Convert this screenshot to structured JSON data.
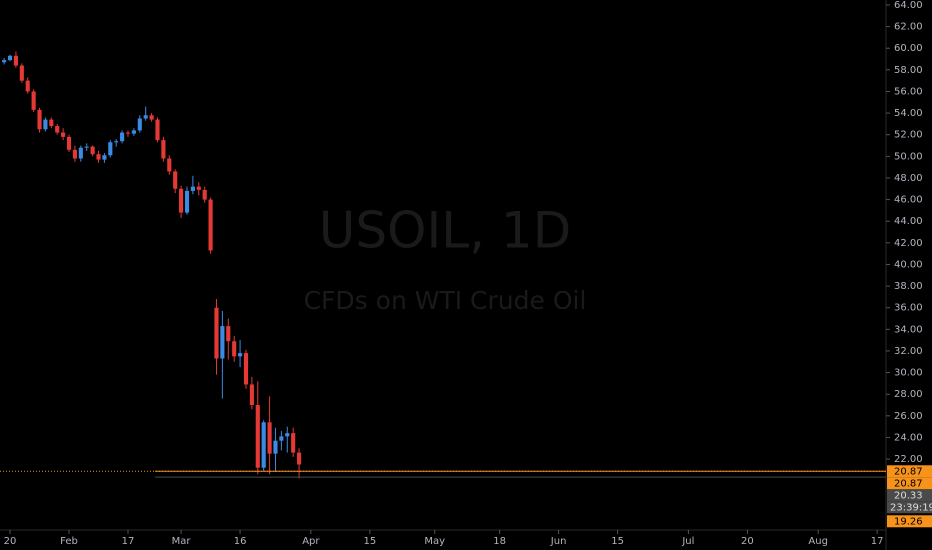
{
  "chart_data": {
    "type": "candlestick",
    "watermark": {
      "symbol": "USOIL, 1D",
      "description": "CFDs on WTI Crude Oil"
    },
    "up_color": "#3b8be6",
    "down_color": "#e53935",
    "open": [
      58.7,
      58.9,
      59.3,
      58.4,
      57.0,
      56.0,
      54.3,
      52.5,
      53.4,
      52.8,
      52.2,
      51.8,
      50.6,
      49.8,
      50.8,
      50.9,
      50.2,
      49.7,
      50.1,
      51.3,
      51.4,
      52.2,
      52.1,
      52.4,
      53.5,
      53.8,
      53.4,
      51.5,
      49.8,
      48.6,
      47.0,
      44.8,
      46.8,
      47.2,
      46.9,
      46.0,
      36.0,
      31.3,
      34.3,
      32.9,
      31.5,
      31.8,
      28.9,
      27.0,
      21.2,
      25.4,
      22.5,
      23.7,
      24.1,
      24.4,
      22.6
    ],
    "high": [
      59.1,
      59.4,
      59.7,
      58.6,
      57.3,
      56.2,
      54.5,
      53.6,
      53.6,
      53.0,
      52.6,
      52.0,
      51.0,
      51.0,
      51.2,
      51.0,
      50.5,
      50.3,
      51.5,
      51.6,
      52.4,
      52.4,
      52.6,
      53.8,
      54.6,
      54.0,
      53.6,
      51.8,
      50.1,
      48.8,
      47.3,
      47.2,
      48.2,
      47.6,
      47.2,
      46.2,
      36.8,
      35.7,
      35.0,
      33.4,
      33.0,
      32.1,
      29.6,
      29.2,
      25.6,
      27.8,
      24.9,
      24.6,
      25.0,
      24.9,
      23.0
    ],
    "low": [
      58.5,
      58.8,
      58.2,
      56.8,
      55.8,
      54.1,
      52.2,
      52.3,
      52.6,
      52.0,
      51.5,
      50.4,
      49.5,
      49.5,
      50.5,
      50.0,
      49.4,
      49.4,
      49.9,
      50.9,
      51.2,
      51.8,
      51.9,
      52.2,
      53.3,
      53.2,
      51.3,
      49.5,
      48.3,
      46.6,
      44.3,
      44.6,
      46.5,
      46.4,
      45.7,
      41.0,
      29.8,
      27.6,
      31.2,
      31.0,
      30.5,
      28.5,
      26.6,
      20.6,
      20.9,
      20.6,
      20.8,
      22.8,
      22.6,
      22.2,
      20.2
    ],
    "close": [
      58.9,
      59.3,
      58.4,
      57.0,
      56.0,
      54.3,
      52.5,
      53.4,
      52.8,
      52.2,
      51.8,
      50.6,
      49.8,
      50.8,
      50.9,
      50.2,
      49.7,
      50.1,
      51.3,
      51.4,
      52.2,
      52.1,
      52.4,
      53.5,
      53.8,
      53.4,
      51.5,
      49.8,
      48.6,
      47.0,
      44.8,
      46.8,
      47.2,
      46.9,
      46.0,
      41.3,
      31.3,
      34.3,
      32.9,
      31.5,
      31.8,
      28.9,
      27.0,
      21.2,
      25.4,
      22.5,
      23.7,
      24.1,
      24.4,
      22.6,
      21.5
    ],
    "xlim": [
      -0.7,
      149.5
    ],
    "xticks": [
      {
        "value": 1,
        "label": "20"
      },
      {
        "value": 11,
        "label": "Feb"
      },
      {
        "value": 21,
        "label": "17"
      },
      {
        "value": 30,
        "label": "Mar"
      },
      {
        "value": 40,
        "label": "16"
      },
      {
        "value": 52,
        "label": "Apr"
      },
      {
        "value": 62,
        "label": "15"
      },
      {
        "value": 73,
        "label": "May"
      },
      {
        "value": 84,
        "label": "18"
      },
      {
        "value": 94,
        "label": "Jun"
      },
      {
        "value": 104,
        "label": "15"
      },
      {
        "value": 116,
        "label": "Jul"
      },
      {
        "value": 126,
        "label": "20"
      },
      {
        "value": 138,
        "label": "Aug"
      },
      {
        "value": 148,
        "label": "17"
      }
    ],
    "ylim": [
      15.44,
      64.46
    ],
    "yticks": [
      {
        "value": 22,
        "label": "22.00"
      },
      {
        "value": 24,
        "label": "24.00"
      },
      {
        "value": 26,
        "label": "26.00"
      },
      {
        "value": 28,
        "label": "28.00"
      },
      {
        "value": 30,
        "label": "30.00"
      },
      {
        "value": 32,
        "label": "32.00"
      },
      {
        "value": 34,
        "label": "34.00"
      },
      {
        "value": 36,
        "label": "36.00"
      },
      {
        "value": 38,
        "label": "38.00"
      },
      {
        "value": 40,
        "label": "40.00"
      },
      {
        "value": 42,
        "label": "42.00"
      },
      {
        "value": 44,
        "label": "44.00"
      },
      {
        "value": 46,
        "label": "46.00"
      },
      {
        "value": 48,
        "label": "48.00"
      },
      {
        "value": 50,
        "label": "50.00"
      },
      {
        "value": 52,
        "label": "52.00"
      },
      {
        "value": 54,
        "label": "54.00"
      },
      {
        "value": 56,
        "label": "56.00"
      },
      {
        "value": 58,
        "label": "58.00"
      },
      {
        "value": 60,
        "label": "60.00"
      },
      {
        "value": 62,
        "label": "62.00"
      },
      {
        "value": 64,
        "label": "64.00"
      }
    ],
    "price_lines": [
      {
        "value": 20.87,
        "label": "20.87",
        "color": "#f7931a"
      },
      {
        "value": 20.87,
        "label": "20.87",
        "color": "#f7931a"
      },
      {
        "value": 20.33,
        "label": "20.33",
        "color": "#4a4a4a"
      },
      {
        "value": 19.26,
        "label": "19.26",
        "color": "#f7931a"
      }
    ],
    "countdown": "23:39:19"
  }
}
